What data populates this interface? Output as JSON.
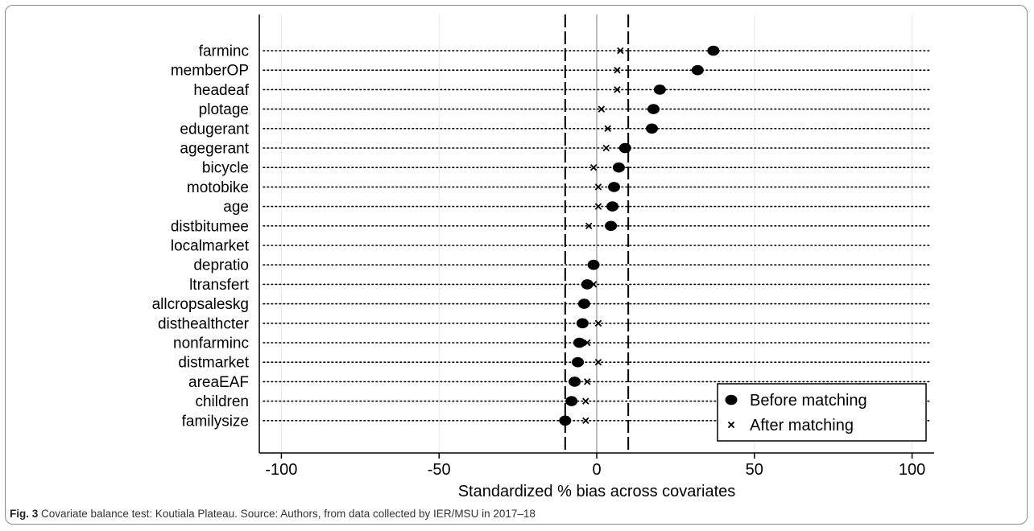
{
  "chart_data": {
    "type": "scatter",
    "xlabel": "Standardized % bias across covariates",
    "xlim": [
      -107,
      107
    ],
    "xticks": [
      -100,
      -50,
      0,
      50,
      100
    ],
    "reference_lines": [
      -10,
      10
    ],
    "zero_line": 0,
    "grid": true,
    "legend_position": "bottom-right",
    "colors": {
      "marker": "#000000",
      "axis": "#000000",
      "grid": "#e6e6e6",
      "zero": "#bdbdbd"
    },
    "categories": [
      "farminc",
      "memberOP",
      "headeaf",
      "plotage",
      "edugerant",
      "agegerant",
      "bicycle",
      "motobike",
      "age",
      "distbitumee",
      "localmarket",
      "depratio",
      "ltransfert",
      "allcropsaleskg",
      "disthealthcter",
      "nonfarminc",
      "distmarket",
      "areaEAF",
      "children",
      "familysize"
    ],
    "series": [
      {
        "name": "Before matching",
        "marker": "circle",
        "values": [
          37,
          32,
          20,
          18,
          17.5,
          9,
          7,
          5.5,
          5,
          4.5,
          null,
          -1,
          -3,
          -4,
          -4.5,
          -5.5,
          -6,
          -7,
          -8,
          -10
        ]
      },
      {
        "name": "After matching",
        "marker": "x",
        "values": [
          7.5,
          6.5,
          6.5,
          1.5,
          3.5,
          3,
          -1,
          0.5,
          0.5,
          -2.5,
          null,
          -1.5,
          -1,
          -3.5,
          0.5,
          -3,
          0.5,
          -3,
          -3.5,
          -3.5
        ]
      }
    ]
  },
  "caption": {
    "label": "Fig. 3",
    "text": "Covariate balance test: Koutiala Plateau. Source: Authors, from data collected by IER/MSU in 2017–18"
  }
}
